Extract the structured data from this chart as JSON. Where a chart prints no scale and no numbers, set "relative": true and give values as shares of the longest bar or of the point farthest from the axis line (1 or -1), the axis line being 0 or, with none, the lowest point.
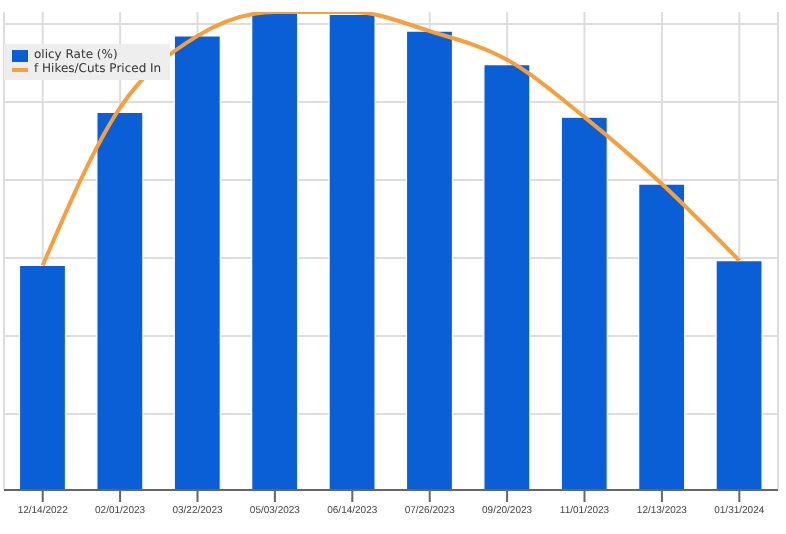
{
  "chart_data": {
    "type": "bar",
    "relative": true,
    "grid": true,
    "legend": "top left",
    "categories": [
      "12/14/2022",
      "02/01/2023",
      "03/22/2023",
      "05/03/2023",
      "06/14/2023",
      "07/26/2023",
      "09/20/2023",
      "11/01/2023",
      "12/13/2023",
      "01/31/2024"
    ],
    "series": [
      {
        "name": "olicy Rate (%)",
        "color": "#0a5fd6",
        "values": [
          0.47,
          0.79,
          0.95,
          1,
          0.995,
          0.96,
          0.89,
          0.78,
          0.64,
          0.48
        ]
      },
      {
        "name": "f Hikes/Cuts Priced In",
        "type": "line",
        "color": "#f5a03c",
        "values": [
          0.47,
          0.8,
          0.95,
          1,
          1,
          0.96,
          0.9,
          0.78,
          0.64,
          0.48
        ]
      }
    ]
  }
}
